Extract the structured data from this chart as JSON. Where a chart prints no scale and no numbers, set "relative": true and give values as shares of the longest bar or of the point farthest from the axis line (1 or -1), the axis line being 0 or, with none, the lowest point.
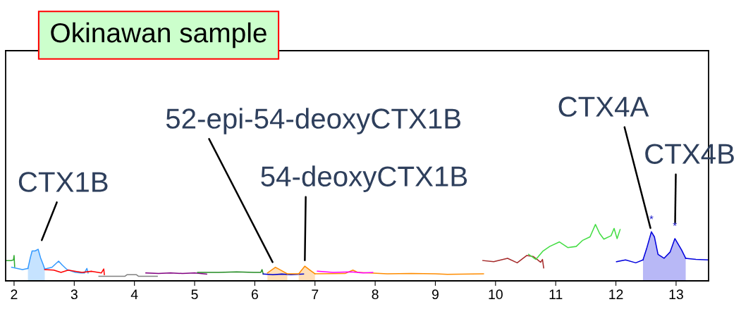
{
  "chart_data": {
    "type": "line",
    "relative": true,
    "title": "Okinawan sample",
    "xlim": [
      1.86,
      13.54
    ],
    "xticks": [
      2,
      3,
      4,
      5,
      6,
      7,
      8,
      9,
      10,
      11,
      12,
      13
    ],
    "annotations": [
      {
        "text": "CTX1B",
        "x": 2.4,
        "y": 0.56
      },
      {
        "text": "52-epi-54-deoxyCTX1B",
        "x": 6.34,
        "y": 0.24
      },
      {
        "text": "54-deoxyCTX1B",
        "x": 6.83,
        "y": 0.26
      },
      {
        "text": "CTX4A",
        "x": 12.59,
        "y": 0.87
      },
      {
        "text": "CTX4B",
        "x": 12.98,
        "y": 0.75
      },
      {
        "text": "*",
        "x": 12.59,
        "y": 0.87
      },
      {
        "text": "*",
        "x": 12.98,
        "y": 0.75
      }
    ],
    "series": [
      {
        "color": "#2eaa2e",
        "x": [
          1.86,
          1.95,
          1.99,
          2.0,
          2.01
        ],
        "values": [
          0.36,
          0.36,
          0.37,
          0.45,
          0.25
        ]
      },
      {
        "color": "#3399ff",
        "x": [
          1.96,
          2.14,
          2.23
        ],
        "values": [
          0.24,
          0.2,
          0.22
        ]
      },
      {
        "type": "area",
        "color": "#3399ff",
        "x": [
          2.23,
          2.27,
          2.3,
          2.35,
          2.4,
          2.44,
          2.48,
          2.51
        ],
        "values": [
          0.22,
          0.41,
          0.53,
          0.53,
          0.56,
          0.41,
          0.3,
          0.21
        ]
      },
      {
        "color": "#3399ff",
        "x": [
          2.51,
          2.63,
          2.74,
          2.8,
          2.88,
          3.02,
          3.11,
          3.17,
          3.21,
          3.23
        ],
        "values": [
          0.21,
          0.24,
          0.35,
          0.28,
          0.2,
          0.15,
          0.14,
          0.14,
          0.22,
          0.14
        ]
      },
      {
        "color": "#ff0000",
        "x": [
          2.51,
          2.66,
          2.78,
          2.9,
          3.02,
          3.13,
          3.29,
          3.45,
          3.49,
          3.5
        ],
        "values": [
          0.2,
          0.19,
          0.15,
          0.19,
          0.17,
          0.15,
          0.17,
          0.14,
          0.21,
          0.11
        ]
      },
      {
        "color": "#808080",
        "x": [
          3.41,
          3.84,
          3.88,
          4.03,
          4.07,
          4.38
        ],
        "values": [
          0.08,
          0.08,
          0.11,
          0.11,
          0.08,
          0.08
        ]
      },
      {
        "color": "#800080",
        "x": [
          4.19,
          4.4,
          4.6,
          4.8,
          5.0,
          5.2
        ],
        "values": [
          0.14,
          0.13,
          0.14,
          0.13,
          0.14,
          0.12
        ]
      },
      {
        "color": "#228b22",
        "x": [
          5.05,
          5.4,
          5.7,
          5.98,
          6.1,
          6.12,
          6.14
        ],
        "values": [
          0.15,
          0.15,
          0.16,
          0.15,
          0.15,
          0.2,
          0.12
        ]
      },
      {
        "color": "#0000cc",
        "x": [
          6.14,
          6.3,
          6.45,
          6.6,
          6.81
        ],
        "values": [
          0.12,
          0.11,
          0.12,
          0.11,
          0.12
        ]
      },
      {
        "type": "area",
        "color": "#ff8c00",
        "x": [
          6.21,
          6.34,
          6.38,
          6.48,
          6.54
        ],
        "values": [
          0.14,
          0.24,
          0.22,
          0.16,
          0.125
        ]
      },
      {
        "color": "#ff8c00",
        "x": [
          6.54,
          6.73
        ],
        "values": [
          0.125,
          0.125
        ]
      },
      {
        "type": "area",
        "color": "#ff8c00",
        "x": [
          6.73,
          6.83,
          6.93,
          7.0
        ],
        "values": [
          0.125,
          0.26,
          0.18,
          0.125
        ]
      },
      {
        "color": "#ff8c00",
        "x": [
          7.0,
          7.5,
          7.63,
          7.71,
          8.2,
          8.6,
          9.0,
          9.2,
          9.8
        ],
        "values": [
          0.125,
          0.13,
          0.19,
          0.15,
          0.125,
          0.13,
          0.125,
          0.115,
          0.125
        ]
      },
      {
        "color": "#ff00ff",
        "x": [
          7.04,
          7.3,
          7.6,
          7.8,
          7.96
        ],
        "values": [
          0.17,
          0.15,
          0.16,
          0.14,
          0.15
        ]
      },
      {
        "color": "#a52a2a",
        "x": [
          9.79,
          9.97,
          10.2,
          10.36,
          10.52,
          10.63,
          10.75,
          10.78,
          10.8
        ],
        "values": [
          0.36,
          0.34,
          0.4,
          0.32,
          0.45,
          0.43,
          0.33,
          0.38,
          0.23
        ]
      },
      {
        "color": "#44dd44",
        "x": [
          10.55,
          10.67,
          10.79,
          10.9,
          11.06,
          11.2,
          11.34,
          11.45,
          11.57,
          11.66,
          11.73,
          11.8,
          11.92,
          11.97,
          12.02,
          12.07
        ],
        "values": [
          0.47,
          0.38,
          0.53,
          0.61,
          0.69,
          0.59,
          0.61,
          0.72,
          0.78,
          1.0,
          0.84,
          0.74,
          0.8,
          0.93,
          0.75,
          0.91
        ]
      },
      {
        "color": "#0000dd",
        "x": [
          12.01,
          12.16,
          12.33,
          12.45
        ],
        "values": [
          0.34,
          0.37,
          0.32,
          0.37
        ]
      },
      {
        "type": "area",
        "color": "#0000dd",
        "x": [
          12.45,
          12.51,
          12.59,
          12.64,
          12.7,
          12.8,
          12.9,
          12.98,
          13.09,
          13.16
        ],
        "values": [
          0.37,
          0.57,
          0.87,
          0.78,
          0.47,
          0.4,
          0.51,
          0.75,
          0.55,
          0.4
        ]
      },
      {
        "color": "#0000dd",
        "x": [
          13.16,
          13.33,
          13.54
        ],
        "values": [
          0.4,
          0.38,
          0.37
        ]
      }
    ]
  }
}
